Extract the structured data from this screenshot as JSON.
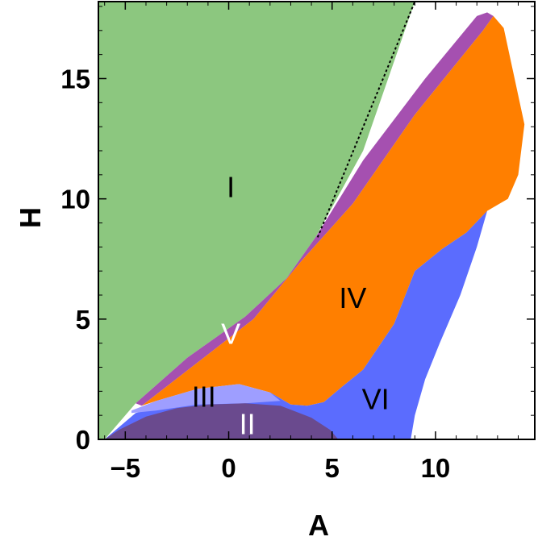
{
  "chart_data": {
    "type": "area",
    "title": "",
    "xlabel": "A",
    "ylabel": "H",
    "xlim": [
      -6.3,
      14.8
    ],
    "ylim": [
      0,
      18.2
    ],
    "x_ticks": [
      -5,
      0,
      5,
      10
    ],
    "y_ticks": [
      0,
      5,
      10,
      15
    ],
    "x_tick_labels": [
      "−5",
      "0",
      "5",
      "10"
    ],
    "y_tick_labels": [
      "0",
      "5",
      "10",
      "15"
    ],
    "grid": false,
    "regions": [
      {
        "label": "I",
        "color": "#8CC77F",
        "label_pos": [
          0.1,
          10.5
        ],
        "label_color": "#000000",
        "boundary": [
          [
            -6.3,
            18.2
          ],
          [
            9.0,
            18.2
          ],
          [
            6.5,
            12.0
          ],
          [
            4.2,
            8.4
          ],
          [
            2.8,
            6.7
          ],
          [
            0.8,
            5.1
          ],
          [
            -2.0,
            3.4
          ],
          [
            -4.5,
            1.5
          ],
          [
            -6.0,
            0
          ],
          [
            -6.3,
            0
          ]
        ]
      },
      {
        "label": "V",
        "color": "#A550B0",
        "label_pos": [
          0.1,
          4.4
        ],
        "label_color": "#ffffff",
        "boundary": [
          [
            -4.5,
            1.5
          ],
          [
            -2.0,
            3.4
          ],
          [
            0.8,
            5.1
          ],
          [
            2.8,
            6.7
          ],
          [
            4.2,
            8.4
          ],
          [
            6.5,
            11.6
          ],
          [
            9.5,
            15.0
          ],
          [
            12.0,
            17.6
          ],
          [
            12.5,
            17.75
          ],
          [
            12.8,
            17.6
          ],
          [
            12.3,
            17.0
          ],
          [
            9.0,
            13.5
          ],
          [
            6.0,
            9.8
          ],
          [
            3.5,
            7.4
          ],
          [
            1.2,
            5.0
          ],
          [
            -1.5,
            3.2
          ],
          [
            -4.2,
            1.4
          ]
        ]
      },
      {
        "label": "IV",
        "color": "#FF7F00",
        "label_pos": [
          6.0,
          5.9
        ],
        "label_color": "#000000",
        "boundary": [
          [
            -4.2,
            1.4
          ],
          [
            -1.5,
            3.2
          ],
          [
            1.2,
            5.0
          ],
          [
            3.5,
            7.4
          ],
          [
            6.0,
            9.8
          ],
          [
            9.0,
            13.5
          ],
          [
            12.3,
            17.0
          ],
          [
            12.8,
            17.6
          ],
          [
            13.3,
            17.1
          ],
          [
            13.7,
            15.5
          ],
          [
            14.3,
            13.1
          ],
          [
            14.0,
            11.0
          ],
          [
            13.5,
            10.0
          ],
          [
            12.5,
            9.5
          ],
          [
            11.5,
            8.6
          ],
          [
            10.3,
            7.9
          ],
          [
            9.0,
            7.0
          ],
          [
            8.0,
            4.8
          ],
          [
            6.5,
            2.9
          ],
          [
            5.5,
            2.2
          ],
          [
            4.6,
            1.55
          ],
          [
            3.8,
            1.4
          ],
          [
            3.0,
            1.45
          ],
          [
            2.0,
            1.95
          ],
          [
            0.5,
            2.3
          ],
          [
            -1.5,
            2.1
          ],
          [
            -3.5,
            1.6
          ],
          [
            -4.2,
            1.4
          ]
        ]
      },
      {
        "label": "VI",
        "color": "#5B6CFE",
        "label_pos": [
          7.1,
          1.7
        ],
        "label_color": "#000000",
        "boundary": [
          [
            2.0,
            1.95
          ],
          [
            3.0,
            1.45
          ],
          [
            3.8,
            1.4
          ],
          [
            4.6,
            1.55
          ],
          [
            5.5,
            2.2
          ],
          [
            6.5,
            2.9
          ],
          [
            8.0,
            4.8
          ],
          [
            9.0,
            7.0
          ],
          [
            10.3,
            7.9
          ],
          [
            11.5,
            8.6
          ],
          [
            12.5,
            9.5
          ],
          [
            12.0,
            8.0
          ],
          [
            11.2,
            6.0
          ],
          [
            10.2,
            4.0
          ],
          [
            9.5,
            2.5
          ],
          [
            9.0,
            1.0
          ],
          [
            8.8,
            0
          ],
          [
            -6.0,
            0
          ],
          [
            -4.5,
            1.1
          ],
          [
            -3.0,
            1.4
          ],
          [
            -1.0,
            1.8
          ],
          [
            0.5,
            2.0
          ],
          [
            1.5,
            1.97
          ]
        ]
      },
      {
        "label": "III",
        "color": "#9E9EFF",
        "label_pos": [
          -1.2,
          1.8
        ],
        "label_color": "#000000",
        "boundary": [
          [
            -4.7,
            1.2
          ],
          [
            -3.5,
            1.6
          ],
          [
            -1.5,
            2.1
          ],
          [
            0.5,
            2.3
          ],
          [
            2.0,
            1.95
          ],
          [
            2.5,
            1.6
          ],
          [
            0.8,
            1.5
          ],
          [
            -1.5,
            1.45
          ],
          [
            -3.5,
            1.2
          ],
          [
            -4.7,
            1.1
          ]
        ]
      },
      {
        "label": "II",
        "color": "#6A4A8E",
        "label_pos": [
          0.9,
          0.65
        ],
        "label_color": "#ffffff",
        "boundary": [
          [
            -6.0,
            0
          ],
          [
            -5.3,
            0.4
          ],
          [
            -4.0,
            0.95
          ],
          [
            -2.5,
            1.3
          ],
          [
            -1.0,
            1.45
          ],
          [
            0.8,
            1.5
          ],
          [
            2.5,
            1.4
          ],
          [
            4.0,
            0.9
          ],
          [
            4.9,
            0.4
          ],
          [
            5.3,
            0
          ],
          [
            -6.0,
            0
          ]
        ]
      }
    ],
    "boundary_line": {
      "style": "dashed",
      "color": "#000000",
      "points": [
        [
          4.3,
          8.4
        ],
        [
          9.0,
          18.2
        ]
      ]
    }
  }
}
